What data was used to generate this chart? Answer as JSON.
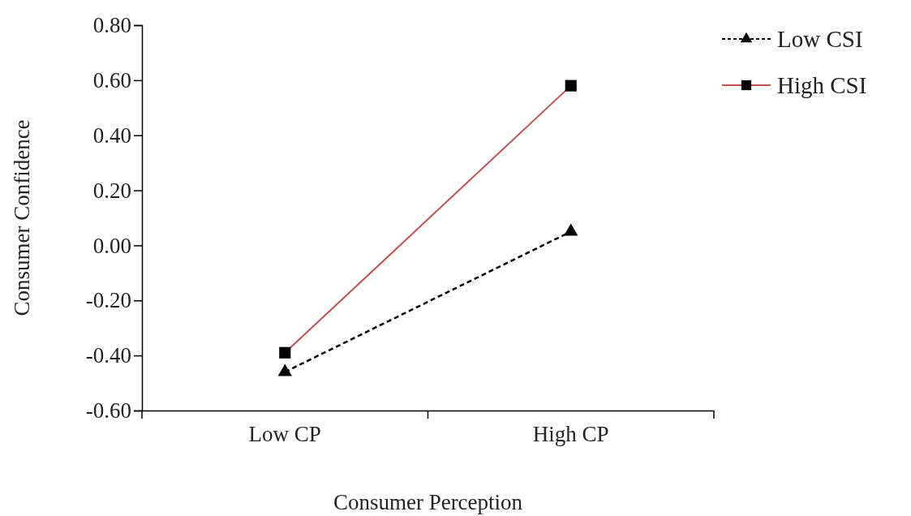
{
  "chart_data": {
    "type": "line",
    "xlabel": "Consumer Perception",
    "ylabel": "Consumer Confidence",
    "categories": [
      "Low CP",
      "High CP"
    ],
    "series": [
      {
        "name": "Low CSI",
        "color": "#000000",
        "values": [
          -0.46,
          0.05
        ],
        "marker": "triangle",
        "line_style": "dashed"
      },
      {
        "name": "High CSI",
        "color": "#c0504d",
        "values": [
          -0.39,
          0.58
        ],
        "marker": "square",
        "line_style": "solid"
      }
    ],
    "ylim": [
      -0.6,
      0.8
    ],
    "yticks": [
      {
        "value": -0.6,
        "label": "-0.60"
      },
      {
        "value": -0.4,
        "label": "-0.40"
      },
      {
        "value": -0.2,
        "label": "-0.20"
      },
      {
        "value": 0,
        "label": "0.00"
      },
      {
        "value": 0.2,
        "label": "0.20"
      },
      {
        "value": 0.4,
        "label": "0.40"
      },
      {
        "value": 0.6,
        "label": "0.60"
      },
      {
        "value": 0.8,
        "label": "0.80"
      }
    ],
    "grid": false,
    "legend": "top right"
  }
}
